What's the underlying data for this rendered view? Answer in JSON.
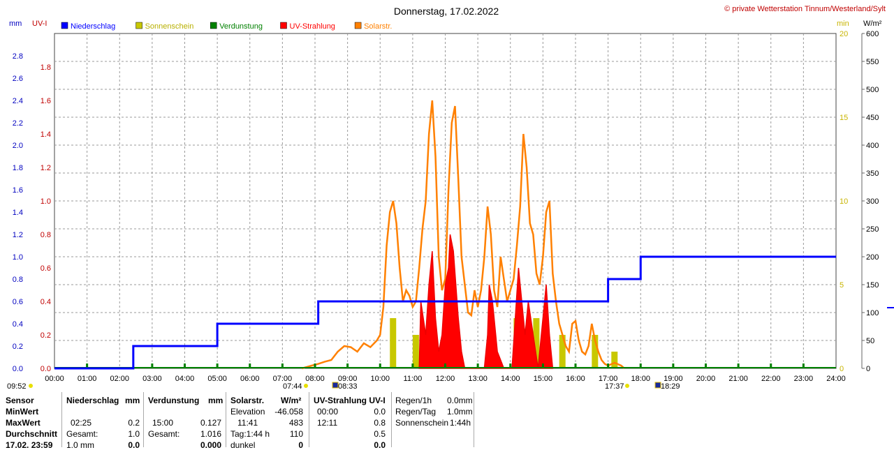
{
  "title": "Donnerstag, 17.02.2022",
  "copyright": "© private Wetterstation Tinnum/Westerland/Sylt",
  "chart_data": {
    "type": "line",
    "x_ticks": [
      "00:00",
      "01:00",
      "02:00",
      "03:00",
      "04:00",
      "05:00",
      "06:00",
      "07:00",
      "08:00",
      "09:00",
      "10:00",
      "11:00",
      "12:00",
      "13:00",
      "14:00",
      "15:00",
      "16:00",
      "17:00",
      "18:00",
      "19:00",
      "20:00",
      "21:00",
      "22:00",
      "23:00",
      "24:00"
    ],
    "axes": {
      "mm": {
        "label": "mm",
        "range": [
          0,
          3.0
        ],
        "ticks": [
          "0.0",
          "0.2",
          "0.4",
          "0.6",
          "0.8",
          "1.0",
          "1.2",
          "1.4",
          "1.6",
          "1.8",
          "2.0",
          "2.2",
          "2.4",
          "2.6",
          "2.8"
        ],
        "color": "#0000c0"
      },
      "uvi": {
        "label": "UV-I",
        "range": [
          0,
          2.0
        ],
        "ticks": [
          "0.0",
          "0.2",
          "0.4",
          "0.6",
          "0.8",
          "1.0",
          "1.2",
          "1.4",
          "1.6",
          "1.8"
        ],
        "color": "#c00000"
      },
      "min": {
        "label": "min",
        "range": [
          0,
          20
        ],
        "ticks": [
          "0",
          "5",
          "10",
          "15",
          "20"
        ],
        "color": "#c8b400"
      },
      "wm2": {
        "label": "W/m²",
        "range": [
          0,
          600
        ],
        "ticks": [
          "0",
          "50",
          "100",
          "150",
          "200",
          "250",
          "300",
          "350",
          "400",
          "450",
          "500",
          "550",
          "600"
        ],
        "color": "#000000"
      }
    },
    "legend": [
      {
        "name": "Niederschlag",
        "color": "#0000ff"
      },
      {
        "name": "Sonnenschein",
        "color": "#c8c800"
      },
      {
        "name": "Verdunstung",
        "color": "#008000"
      },
      {
        "name": "UV-Strahlung",
        "color": "#ff0000"
      },
      {
        "name": "Solarstr.",
        "color": "#ff8000"
      }
    ],
    "niederschlag_steps": [
      [
        0,
        0
      ],
      [
        2.42,
        0
      ],
      [
        2.42,
        0.2
      ],
      [
        5.0,
        0.2
      ],
      [
        5.0,
        0.4
      ],
      [
        8.1,
        0.4
      ],
      [
        8.1,
        0.6
      ],
      [
        17.0,
        0.6
      ],
      [
        17.0,
        0.8
      ],
      [
        18.0,
        0.8
      ],
      [
        18.0,
        1.0
      ],
      [
        24,
        1.0
      ]
    ],
    "solar": [
      [
        7.6,
        0
      ],
      [
        7.9,
        5
      ],
      [
        8.1,
        8
      ],
      [
        8.3,
        12
      ],
      [
        8.5,
        15
      ],
      [
        8.7,
        30
      ],
      [
        8.9,
        40
      ],
      [
        9.1,
        38
      ],
      [
        9.3,
        30
      ],
      [
        9.5,
        45
      ],
      [
        9.7,
        38
      ],
      [
        9.9,
        50
      ],
      [
        10.0,
        60
      ],
      [
        10.1,
        110
      ],
      [
        10.2,
        220
      ],
      [
        10.3,
        280
      ],
      [
        10.4,
        300
      ],
      [
        10.5,
        260
      ],
      [
        10.6,
        180
      ],
      [
        10.7,
        120
      ],
      [
        10.8,
        140
      ],
      [
        10.9,
        130
      ],
      [
        11.0,
        110
      ],
      [
        11.1,
        120
      ],
      [
        11.2,
        180
      ],
      [
        11.3,
        250
      ],
      [
        11.4,
        300
      ],
      [
        11.5,
        420
      ],
      [
        11.6,
        480
      ],
      [
        11.7,
        380
      ],
      [
        11.8,
        200
      ],
      [
        11.9,
        140
      ],
      [
        12.0,
        160
      ],
      [
        12.1,
        320
      ],
      [
        12.2,
        440
      ],
      [
        12.3,
        470
      ],
      [
        12.4,
        340
      ],
      [
        12.5,
        200
      ],
      [
        12.6,
        150
      ],
      [
        12.7,
        100
      ],
      [
        12.8,
        95
      ],
      [
        12.9,
        140
      ],
      [
        13.0,
        110
      ],
      [
        13.1,
        140
      ],
      [
        13.2,
        200
      ],
      [
        13.3,
        290
      ],
      [
        13.4,
        240
      ],
      [
        13.5,
        140
      ],
      [
        13.6,
        110
      ],
      [
        13.7,
        200
      ],
      [
        13.8,
        160
      ],
      [
        13.9,
        120
      ],
      [
        14.0,
        140
      ],
      [
        14.1,
        160
      ],
      [
        14.2,
        220
      ],
      [
        14.3,
        290
      ],
      [
        14.4,
        420
      ],
      [
        14.5,
        360
      ],
      [
        14.6,
        260
      ],
      [
        14.7,
        240
      ],
      [
        14.8,
        170
      ],
      [
        14.9,
        150
      ],
      [
        15.0,
        200
      ],
      [
        15.1,
        280
      ],
      [
        15.2,
        300
      ],
      [
        15.3,
        170
      ],
      [
        15.4,
        120
      ],
      [
        15.5,
        80
      ],
      [
        15.6,
        60
      ],
      [
        15.7,
        40
      ],
      [
        15.8,
        30
      ],
      [
        15.9,
        80
      ],
      [
        16.0,
        85
      ],
      [
        16.1,
        50
      ],
      [
        16.2,
        30
      ],
      [
        16.3,
        25
      ],
      [
        16.4,
        40
      ],
      [
        16.5,
        80
      ],
      [
        16.6,
        50
      ],
      [
        16.7,
        30
      ],
      [
        16.8,
        15
      ],
      [
        16.9,
        8
      ],
      [
        17.0,
        5
      ],
      [
        17.2,
        10
      ],
      [
        17.4,
        5
      ],
      [
        17.5,
        0
      ]
    ],
    "uv": [
      [
        11.2,
        0
      ],
      [
        11.25,
        0.4
      ],
      [
        11.4,
        0.2
      ],
      [
        11.5,
        0.5
      ],
      [
        11.6,
        0.7
      ],
      [
        11.7,
        0.3
      ],
      [
        11.8,
        0.1
      ],
      [
        11.9,
        0.2
      ],
      [
        12.0,
        0.5
      ],
      [
        12.1,
        0.6
      ],
      [
        12.15,
        0.8
      ],
      [
        12.25,
        0.7
      ],
      [
        12.4,
        0.3
      ],
      [
        12.5,
        0.1
      ],
      [
        12.6,
        0
      ],
      [
        13.2,
        0
      ],
      [
        13.3,
        0.2
      ],
      [
        13.35,
        0.5
      ],
      [
        13.45,
        0.4
      ],
      [
        13.6,
        0.1
      ],
      [
        13.8,
        0
      ],
      [
        14.05,
        0
      ],
      [
        14.15,
        0.3
      ],
      [
        14.25,
        0.6
      ],
      [
        14.35,
        0.4
      ],
      [
        14.45,
        0.2
      ],
      [
        14.55,
        0.4
      ],
      [
        14.7,
        0.2
      ],
      [
        14.85,
        0
      ],
      [
        15.0,
        0.3
      ],
      [
        15.1,
        0.5
      ],
      [
        15.2,
        0.2
      ],
      [
        15.3,
        0
      ]
    ],
    "sonnenschein_bars": [
      [
        10.3,
        3
      ],
      [
        11.0,
        2
      ],
      [
        11.5,
        3
      ],
      [
        12.0,
        3
      ],
      [
        12.2,
        2
      ],
      [
        13.3,
        2
      ],
      [
        14.1,
        3
      ],
      [
        14.7,
        3
      ],
      [
        15.0,
        2
      ],
      [
        15.5,
        2
      ],
      [
        16.5,
        2
      ],
      [
        17.1,
        1
      ]
    ],
    "verdunstung_ticks": [
      1,
      3,
      4,
      5,
      6,
      7,
      8,
      9,
      10,
      11,
      12,
      13,
      14,
      15,
      16,
      17,
      18,
      19,
      20,
      21,
      22,
      23
    ],
    "sun_markers": [
      "09:52",
      "07:44",
      "08:33",
      "17:37",
      "18:29"
    ]
  },
  "table": {
    "col1": {
      "header": "Sensor",
      "rows": [
        "MinWert",
        "MaxWert",
        "Durchschnitt",
        "17.02. 23:59"
      ]
    },
    "col2": {
      "header": "Niederschlag",
      "unit": "mm",
      "rows": [
        [
          "",
          ""
        ],
        [
          "02:25",
          "0.2"
        ],
        [
          "Gesamt:",
          "1.0"
        ],
        [
          "1.0 mm",
          "0.0"
        ]
      ]
    },
    "col3": {
      "header": "Verdunstung",
      "unit": "mm",
      "rows": [
        [
          "",
          ""
        ],
        [
          "15:00",
          "0.127"
        ],
        [
          "Gesamt:",
          "1.016"
        ],
        [
          "",
          "0.000"
        ]
      ]
    },
    "col4": {
      "header": "Solarstr.",
      "unit": "W/m²",
      "rows": [
        [
          "Elevation",
          "-46.058"
        ],
        [
          "11:41",
          "483"
        ],
        [
          "Tag:1:44 h",
          "110"
        ],
        [
          "dunkel",
          "0"
        ]
      ]
    },
    "col5": {
      "header": "UV-Strahlung",
      "unit": "UV-I",
      "rows": [
        [
          "00:00",
          "0.0"
        ],
        [
          "12:11",
          "0.8"
        ],
        [
          "",
          "0.5"
        ],
        [
          "",
          "0.0"
        ]
      ]
    },
    "col6": {
      "rows": [
        [
          "Regen/1h",
          "0.0mm"
        ],
        [
          "Regen/Tag",
          "1.0mm"
        ],
        [
          "Sonnenschein",
          "1:44h"
        ]
      ]
    }
  }
}
